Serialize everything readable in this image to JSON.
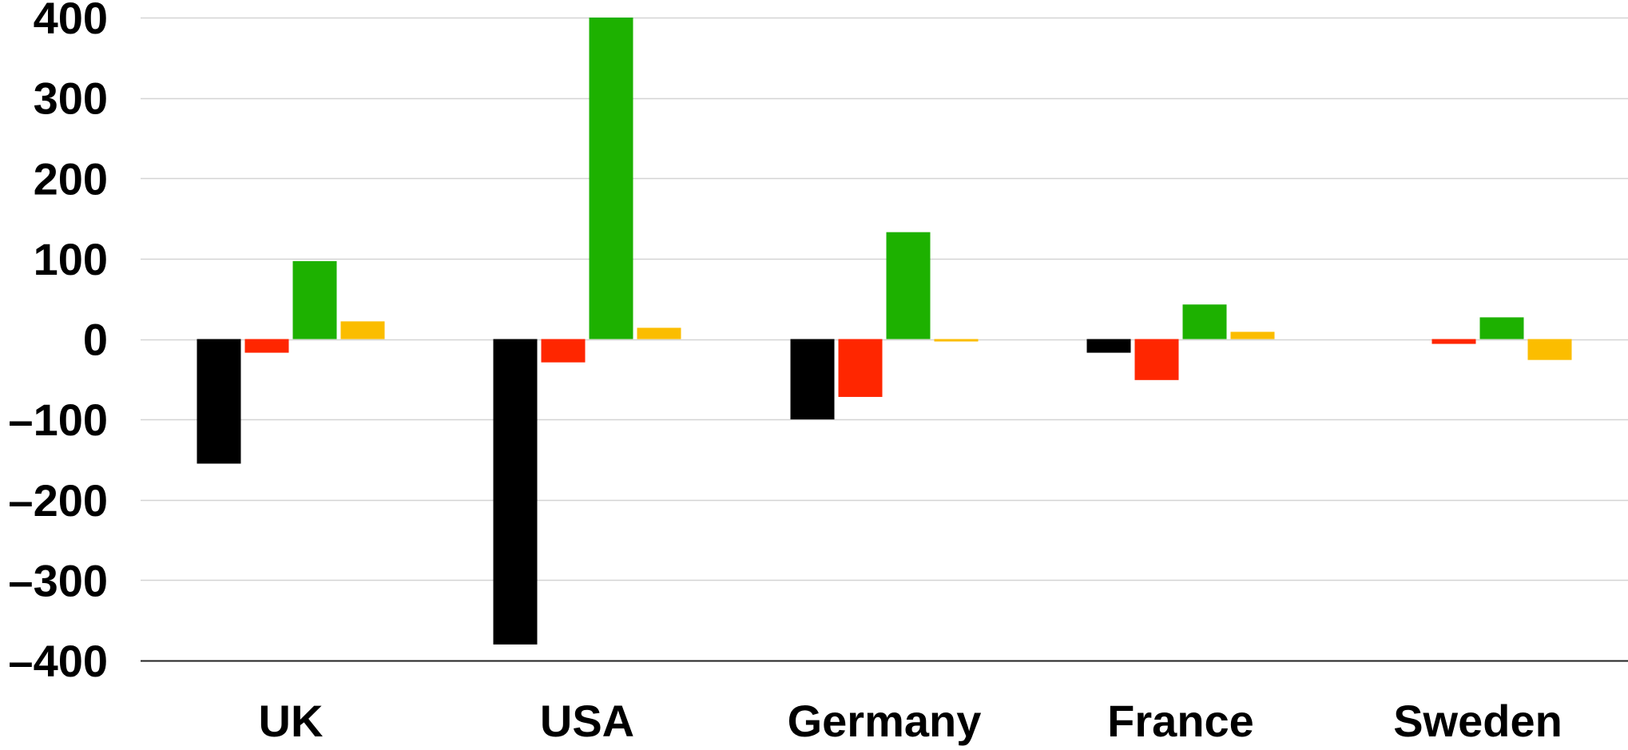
{
  "chart_data": {
    "type": "bar",
    "title": "",
    "xlabel": "",
    "ylabel": "",
    "categories": [
      "UK",
      "USA",
      "Germany",
      "France",
      "Sweden"
    ],
    "ylim": [
      -400,
      400
    ],
    "yticks": [
      400,
      300,
      200,
      100,
      0,
      -100,
      -200,
      -300,
      -400
    ],
    "ytick_labels": [
      "400",
      "300",
      "200",
      "100",
      "0",
      "–100",
      "–200",
      "–300",
      "–400"
    ],
    "grid": true,
    "legend": "none",
    "series": [
      {
        "color": "#000000",
        "values": [
          -155,
          -380,
          -100,
          -17,
          0
        ]
      },
      {
        "color": "#ff2600",
        "values": [
          -17,
          -29,
          -72,
          -51,
          -6
        ]
      },
      {
        "color": "#1db100",
        "values": [
          97,
          400,
          133,
          43,
          27
        ]
      },
      {
        "color": "#fbbd00",
        "values": [
          22,
          14,
          -3,
          9,
          -26
        ]
      }
    ]
  }
}
